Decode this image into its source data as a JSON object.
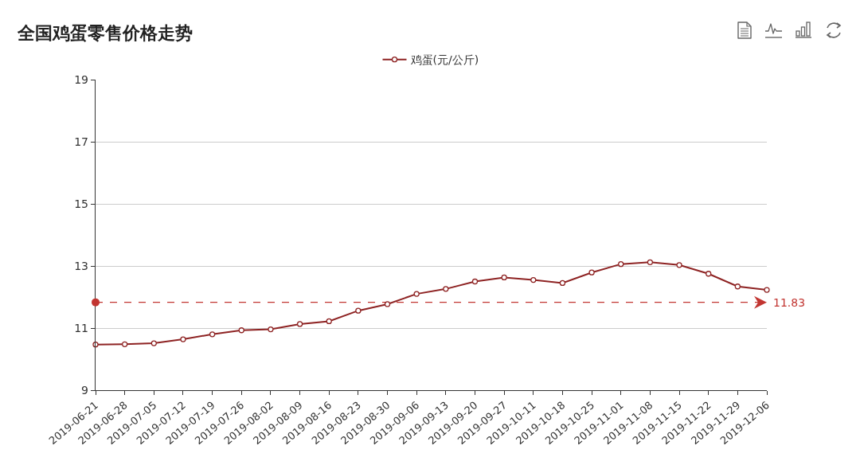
{
  "chart_data": {
    "type": "line",
    "title": "全国鸡蛋零售价格走势",
    "categories": [
      "2019-06-21",
      "2019-06-28",
      "2019-07-05",
      "2019-07-12",
      "2019-07-19",
      "2019-07-26",
      "2019-08-02",
      "2019-08-09",
      "2019-08-16",
      "2019-08-23",
      "2019-08-30",
      "2019-09-06",
      "2019-09-13",
      "2019-09-20",
      "2019-09-27",
      "2019-10-11",
      "2019-10-18",
      "2019-10-25",
      "2019-11-01",
      "2019-11-08",
      "2019-11-15",
      "2019-11-22",
      "2019-11-29",
      "2019-12-06"
    ],
    "series": [
      {
        "name": "鸡蛋(元/公斤)",
        "color": "#8e2323",
        "values": [
          10.47,
          10.48,
          10.51,
          10.64,
          10.8,
          10.93,
          10.96,
          11.13,
          11.22,
          11.56,
          11.77,
          12.1,
          12.26,
          12.5,
          12.63,
          12.55,
          12.45,
          12.79,
          13.06,
          13.12,
          13.03,
          12.75,
          12.34,
          12.23
        ]
      }
    ],
    "ylim": [
      9,
      19
    ],
    "yticks": [
      9,
      11,
      13,
      15,
      17,
      19
    ],
    "grid": "y",
    "legend": "top",
    "marker": "circle",
    "line_style": "solid",
    "ref_lines": [
      {
        "axis": "y",
        "value": 11.83,
        "label": "11.83",
        "color": "#c23531",
        "line_style": "dashed"
      }
    ]
  }
}
